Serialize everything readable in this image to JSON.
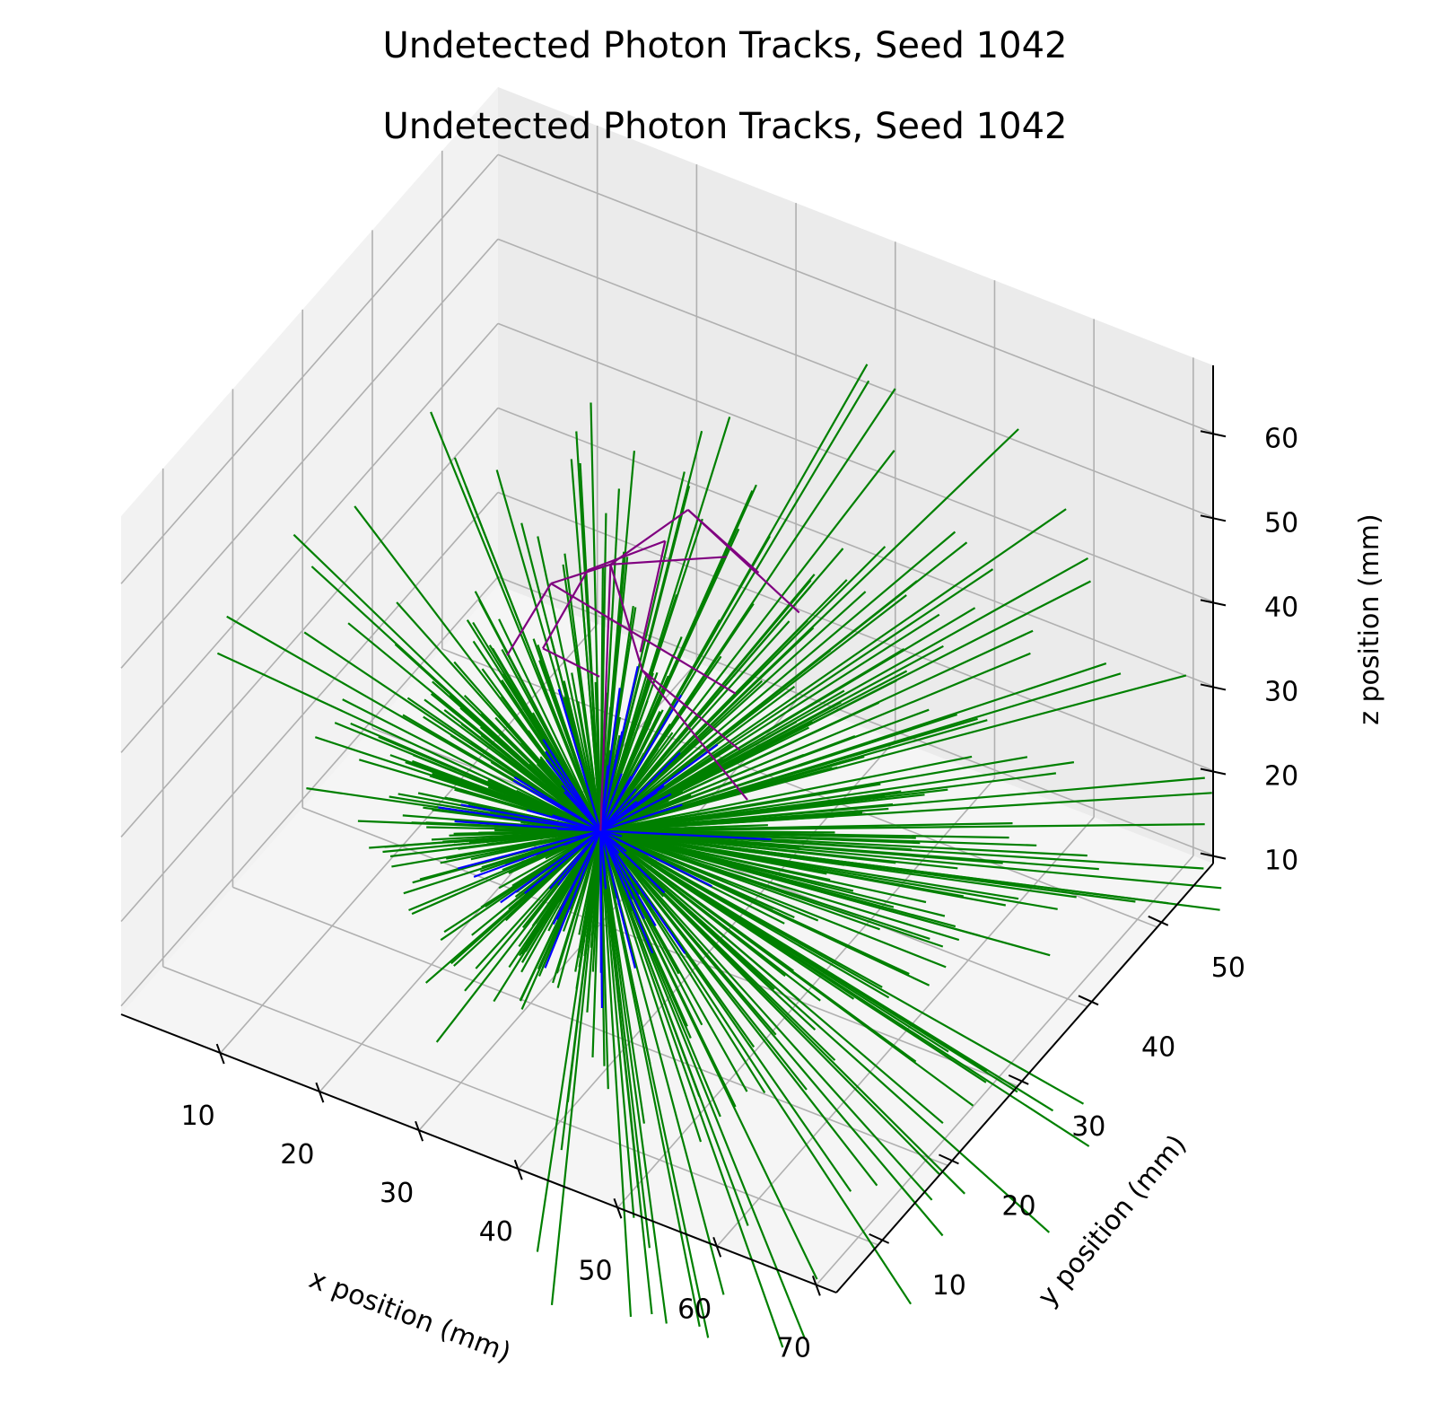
{
  "title": "Undetected Photon Tracks, Seed 1042",
  "subtitle": "Undetected Photon Tracks, Seed 1042",
  "colors": {
    "track_main": "#008000",
    "track_short": "#0000ff",
    "track_scattered": "#800080",
    "pane_left": "#f2f2f2",
    "pane_right": "#ebebeb",
    "pane_floor": "#f5f5f5",
    "grid": "#b0b0b0"
  },
  "chart_data": {
    "type": "line3d",
    "title": "Undetected Photon Tracks, Seed 1042",
    "xlabel": "x position (mm)",
    "ylabel": "y position (mm)",
    "zlabel": "z position (mm)",
    "xlim": [
      0,
      72
    ],
    "ylim": [
      4,
      58
    ],
    "zlim": [
      9,
      68
    ],
    "xticks": [
      "10",
      "20",
      "30",
      "40",
      "50",
      "60",
      "70"
    ],
    "yticks": [
      "10",
      "20",
      "30",
      "40",
      "50"
    ],
    "zticks": [
      "10",
      "20",
      "30",
      "40",
      "50",
      "60"
    ],
    "grid": true,
    "source_point": [
      30,
      30,
      20
    ],
    "series": [
      {
        "color": "green",
        "count": 520,
        "description_length_range_mm": [
          10,
          55
        ],
        "emission": "isotropic from source point, biased toward +x"
      },
      {
        "color": "blue",
        "count": 60,
        "length_range_mm": [
          6,
          16
        ],
        "emission": "isotropic from source point"
      },
      {
        "color": "purple",
        "segments": [
          [
            [
              30,
              30,
              20
            ],
            [
              31,
              30,
              52
            ]
          ],
          [
            [
              31,
              30,
              52
            ],
            [
              25,
              30,
              47
            ]
          ],
          [
            [
              25,
              30,
              47
            ],
            [
              45,
              28,
              45
            ]
          ],
          [
            [
              31,
              30,
              52
            ],
            [
              42,
              31,
              57
            ]
          ],
          [
            [
              31,
              30,
              52
            ],
            [
              37,
              26,
              46
            ]
          ],
          [
            [
              37,
              26,
              46
            ],
            [
              44,
              30,
              36
            ]
          ],
          [
            [
              37,
              26,
              46
            ],
            [
              49,
              24,
              38
            ]
          ],
          [
            [
              25,
              30,
              47
            ],
            [
              22,
              28,
              39
            ]
          ],
          [
            [
              31,
              30,
              52
            ],
            [
              36,
              34,
              57
            ]
          ],
          [
            [
              36,
              34,
              57
            ],
            [
              50,
              30,
              55
            ]
          ],
          [
            [
              36,
              34,
              57
            ],
            [
              41,
              37,
              49
            ]
          ],
          [
            [
              28,
              31,
              49
            ],
            [
              33,
              35,
              51
            ]
          ],
          [
            [
              28,
              31,
              49
            ],
            [
              27,
              26,
              44
            ]
          ],
          [
            [
              33,
              35,
              51
            ],
            [
              34,
              30,
              43
            ]
          ],
          [
            [
              27,
              26,
              44
            ],
            [
              32,
              27,
              42
            ]
          ]
        ]
      }
    ]
  }
}
